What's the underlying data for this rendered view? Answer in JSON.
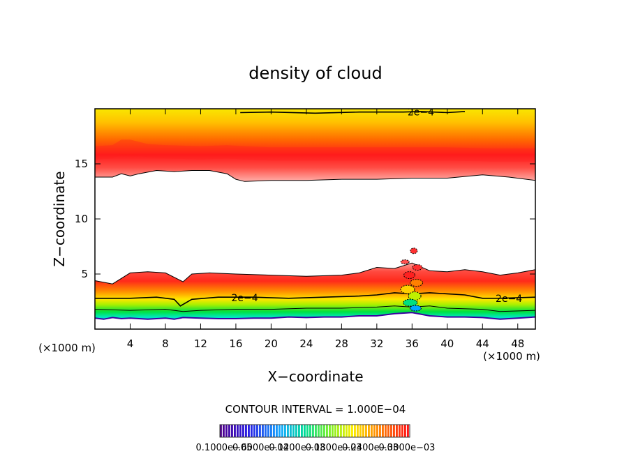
{
  "chart_data": {
    "type": "contour",
    "title": "density of cloud",
    "xlabel": "X−coordinate",
    "ylabel": "Z−coordinate",
    "x_unit_left": "(×1000 m)",
    "x_unit_right": "(×1000 m)",
    "xlim": [
      0,
      50
    ],
    "ylim": [
      0,
      20
    ],
    "xticks": [
      4,
      8,
      12,
      16,
      20,
      24,
      28,
      32,
      36,
      40,
      44,
      48
    ],
    "yticks": [
      5,
      10,
      15
    ],
    "contour_interval_label": "CONTOUR INTERVAL = 1.000E−04",
    "contour_labels": [
      {
        "text": "2e−4",
        "x": 37,
        "y": 19.7
      },
      {
        "text": "2e−4",
        "x": 17,
        "y": 2.85
      },
      {
        "text": "2e−4",
        "x": 47,
        "y": 2.8
      }
    ],
    "cloud_layers": [
      {
        "name": "upper",
        "base": [
          [
            0,
            13.8
          ],
          [
            2,
            13.8
          ],
          [
            3,
            14.1
          ],
          [
            4,
            13.9
          ],
          [
            5,
            14.1
          ],
          [
            7,
            14.4
          ],
          [
            9,
            14.3
          ],
          [
            11,
            14.4
          ],
          [
            13,
            14.4
          ],
          [
            15,
            14.1
          ],
          [
            16,
            13.6
          ],
          [
            17,
            13.4
          ],
          [
            20,
            13.5
          ],
          [
            24,
            13.5
          ],
          [
            28,
            13.6
          ],
          [
            32,
            13.6
          ],
          [
            36,
            13.7
          ],
          [
            40,
            13.7
          ],
          [
            44,
            14.0
          ],
          [
            47,
            13.8
          ],
          [
            50,
            13.5
          ]
        ],
        "core": [
          [
            0,
            16.0
          ],
          [
            2,
            16.1
          ],
          [
            3,
            16.6
          ],
          [
            4,
            16.6
          ],
          [
            6,
            16.2
          ],
          [
            8,
            16.1
          ],
          [
            12,
            16.0
          ],
          [
            15,
            16.1
          ],
          [
            17,
            16.0
          ],
          [
            20,
            15.9
          ],
          [
            25,
            15.9
          ],
          [
            30,
            15.9
          ],
          [
            35,
            15.9
          ],
          [
            40,
            15.9
          ],
          [
            45,
            15.8
          ],
          [
            50,
            15.8
          ]
        ],
        "top": 19.7,
        "contour_2e-4": [
          [
            16.5,
            19.65
          ],
          [
            20,
            19.7
          ],
          [
            25,
            19.6
          ],
          [
            30,
            19.7
          ],
          [
            35,
            19.7
          ],
          [
            37,
            19.75
          ],
          [
            40,
            19.65
          ],
          [
            42,
            19.75
          ]
        ]
      },
      {
        "name": "lower",
        "top": [
          [
            0,
            4.4
          ],
          [
            2,
            4.1
          ],
          [
            4,
            5.1
          ],
          [
            6,
            5.2
          ],
          [
            8,
            5.1
          ],
          [
            10,
            4.3
          ],
          [
            11,
            5.0
          ],
          [
            13,
            5.1
          ],
          [
            16,
            5.0
          ],
          [
            20,
            4.9
          ],
          [
            24,
            4.8
          ],
          [
            28,
            4.9
          ],
          [
            30,
            5.1
          ],
          [
            32,
            5.6
          ],
          [
            34,
            5.5
          ],
          [
            36,
            6.0
          ],
          [
            38,
            5.3
          ],
          [
            40,
            5.2
          ],
          [
            42,
            5.4
          ],
          [
            44,
            5.2
          ],
          [
            46,
            4.9
          ],
          [
            48,
            5.1
          ],
          [
            50,
            5.4
          ]
        ],
        "core": [
          [
            0,
            3.6
          ],
          [
            2,
            3.4
          ],
          [
            4,
            4.3
          ],
          [
            6,
            4.4
          ],
          [
            8,
            4.2
          ],
          [
            10,
            3.4
          ],
          [
            11,
            4.1
          ],
          [
            14,
            4.3
          ],
          [
            18,
            4.0
          ],
          [
            22,
            3.9
          ],
          [
            26,
            4.0
          ],
          [
            30,
            4.2
          ],
          [
            34,
            4.2
          ],
          [
            38,
            4.1
          ],
          [
            42,
            4.0
          ],
          [
            46,
            3.7
          ],
          [
            48,
            4.2
          ],
          [
            50,
            4.3
          ]
        ],
        "contour_2e-4": [
          [
            0,
            2.8
          ],
          [
            4,
            2.8
          ],
          [
            7,
            2.9
          ],
          [
            9,
            2.7
          ],
          [
            9.7,
            2.1
          ],
          [
            11,
            2.7
          ],
          [
            14,
            2.9
          ],
          [
            18,
            2.9
          ],
          [
            22,
            2.8
          ],
          [
            26,
            2.9
          ],
          [
            30,
            3.0
          ],
          [
            32,
            3.1
          ],
          [
            34,
            3.3
          ],
          [
            36,
            3.2
          ],
          [
            38,
            3.3
          ],
          [
            40,
            3.2
          ],
          [
            42,
            3.1
          ],
          [
            44,
            2.8
          ],
          [
            46,
            2.8
          ],
          [
            50,
            2.9
          ]
        ],
        "contour_3e-4": [
          [
            0,
            1.8
          ],
          [
            4,
            1.7
          ],
          [
            8,
            1.8
          ],
          [
            10,
            1.6
          ],
          [
            12,
            1.7
          ],
          [
            16,
            1.8
          ],
          [
            20,
            1.8
          ],
          [
            24,
            1.9
          ],
          [
            28,
            1.9
          ],
          [
            32,
            2.0
          ],
          [
            34,
            2.1
          ],
          [
            36,
            2.0
          ],
          [
            38,
            2.1
          ],
          [
            40,
            1.9
          ],
          [
            44,
            1.8
          ],
          [
            46,
            1.6
          ],
          [
            50,
            1.7
          ]
        ],
        "base": [
          [
            0,
            1.0
          ],
          [
            1,
            0.9
          ],
          [
            2,
            1.05
          ],
          [
            3,
            0.95
          ],
          [
            4,
            1.0
          ],
          [
            6,
            0.9
          ],
          [
            8,
            1.0
          ],
          [
            9,
            0.9
          ],
          [
            10,
            1.05
          ],
          [
            12,
            1.0
          ],
          [
            14,
            0.95
          ],
          [
            16,
            0.95
          ],
          [
            18,
            1.0
          ],
          [
            20,
            1.0
          ],
          [
            22,
            1.1
          ],
          [
            24,
            1.05
          ],
          [
            26,
            1.1
          ],
          [
            28,
            1.1
          ],
          [
            30,
            1.2
          ],
          [
            32,
            1.2
          ],
          [
            34,
            1.4
          ],
          [
            36,
            1.5
          ],
          [
            38,
            1.2
          ],
          [
            40,
            1.1
          ],
          [
            42,
            1.1
          ],
          [
            44,
            1.05
          ],
          [
            46,
            0.9
          ],
          [
            48,
            1.0
          ],
          [
            50,
            1.1
          ]
        ]
      }
    ],
    "convective_cell": {
      "x_range": [
        34,
        38
      ],
      "z_range": [
        1.5,
        7.5
      ]
    },
    "colorbar": {
      "tick_labels": [
        "0.1000e−05",
        "0.6000e−04",
        "0.1200e−03",
        "0.1800e−03",
        "0.2400e−03",
        "0.3000e−03"
      ]
    }
  }
}
